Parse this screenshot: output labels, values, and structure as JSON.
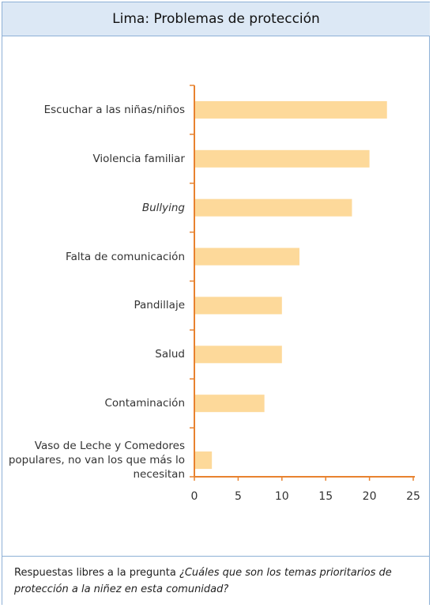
{
  "chart_data": {
    "type": "bar",
    "orientation": "horizontal",
    "title": "Lima: Problemas de protección",
    "categories": [
      "Escuchar a las niñas/niños",
      "Violencia familiar",
      "Bullying",
      "Falta de comunicación",
      "Pandillaje",
      "Salud",
      "Contaminación",
      "Vaso de Leche y Comedores populares, no van los que más lo necesitan"
    ],
    "values": [
      22,
      20,
      18,
      12,
      10,
      10,
      8,
      2
    ],
    "color": "#fdd99a",
    "axis_color": "#e8822f",
    "xlim": [
      0,
      25
    ],
    "xticks": [
      0,
      5,
      10,
      15,
      20,
      25
    ],
    "grid": false,
    "footnote": {
      "text": "Respuestas libres a la pregunta",
      "question": "¿Cuáles que son los temas prioritarios de protección a la niñez en esta comunidad?"
    }
  }
}
